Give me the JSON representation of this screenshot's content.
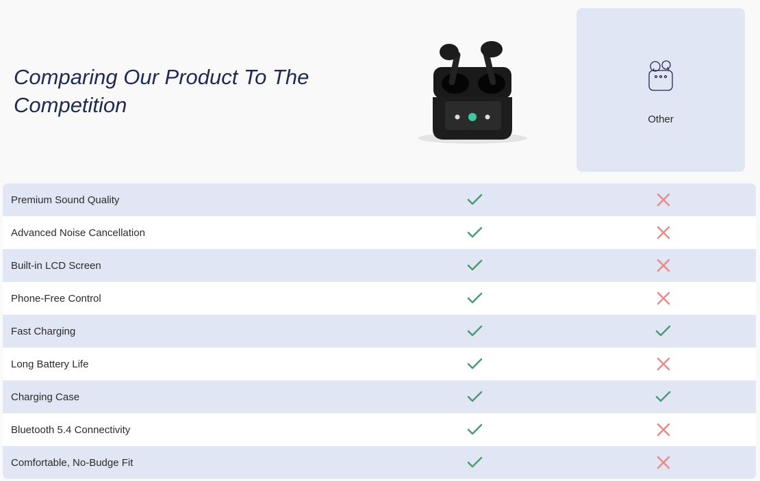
{
  "header": {
    "title": "Comparing Our Product To The Competition"
  },
  "competitor": {
    "label": "Other",
    "icon": "earbuds-case-icon"
  },
  "colors": {
    "check": "#4f9a76",
    "cross": "#e88a8a",
    "row_alt": "#e0e6f4",
    "title": "#1e2a52"
  },
  "rows": [
    {
      "feature": "Premium Sound Quality",
      "ours": true,
      "other": false
    },
    {
      "feature": "Advanced Noise Cancellation",
      "ours": true,
      "other": false
    },
    {
      "feature": "Built-in LCD Screen",
      "ours": true,
      "other": false
    },
    {
      "feature": "Phone-Free Control",
      "ours": true,
      "other": false
    },
    {
      "feature": "Fast Charging",
      "ours": true,
      "other": true
    },
    {
      "feature": "Long Battery Life",
      "ours": true,
      "other": false
    },
    {
      "feature": "Charging Case",
      "ours": true,
      "other": true
    },
    {
      "feature": "Bluetooth 5.4 Connectivity",
      "ours": true,
      "other": false
    },
    {
      "feature": "Comfortable, No-Budge Fit",
      "ours": true,
      "other": false
    }
  ]
}
